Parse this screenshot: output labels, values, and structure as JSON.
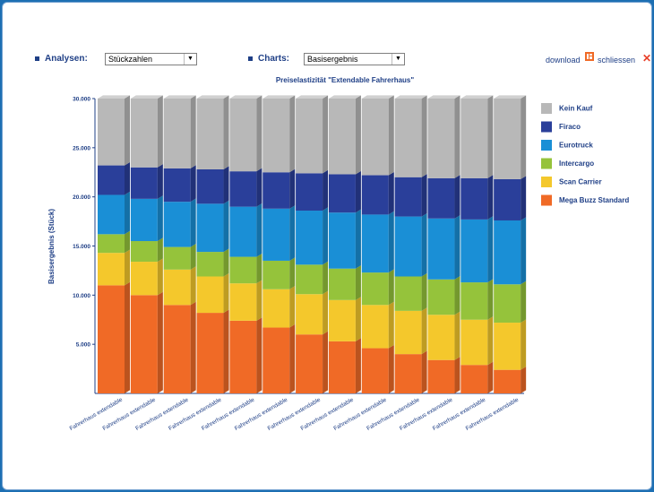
{
  "toolbar": {
    "analysen_label": "Analysen:",
    "analysen_value": "Stückzahlen",
    "charts_label": "Charts:",
    "charts_value": "Basisergebnis",
    "download_label": "download",
    "close_label": "schliessen"
  },
  "colors": {
    "Kein Kauf": "#b8b8b8",
    "Firaco": "#2a3f9a",
    "Eurotruck": "#1a8fd6",
    "Intercargo": "#95c33b",
    "Scan Carrier": "#f4c82c",
    "Mega Buzz Standard": "#f06a26"
  },
  "chart_data": {
    "type": "bar",
    "stacked": true,
    "title": "Preiselastizität \"Extendable Fahrerhaus\"",
    "xlabel": "",
    "ylabel": "Basisergebnis (Stück)",
    "ylim": [
      0,
      30000
    ],
    "yticks": [
      "5.000",
      "10.000",
      "15.000",
      "20.000",
      "25.000",
      "30.000"
    ],
    "legend_position": "right",
    "categories": [
      "Fahrerhaus extendable",
      "Fahrerhaus extendable",
      "Fahrerhaus extendable",
      "Fahrerhaus extendable",
      "Fahrerhaus extendable",
      "Fahrerhaus extendable",
      "Fahrerhaus extendable",
      "Fahrerhaus extendable",
      "Fahrerhaus extendable",
      "Fahrerhaus extendable",
      "Fahrerhaus extendable",
      "Fahrerhaus extendable",
      "Fahrerhaus extendable"
    ],
    "series": [
      {
        "name": "Mega Buzz Standard",
        "values": [
          11000,
          10000,
          9000,
          8200,
          7400,
          6700,
          6000,
          5300,
          4600,
          4000,
          3400,
          2900,
          2400
        ]
      },
      {
        "name": "Scan Carrier",
        "values": [
          3300,
          3400,
          3600,
          3700,
          3800,
          3900,
          4100,
          4200,
          4400,
          4400,
          4600,
          4600,
          4800
        ]
      },
      {
        "name": "Intercargo",
        "values": [
          1900,
          2100,
          2300,
          2500,
          2700,
          2900,
          3000,
          3200,
          3300,
          3500,
          3600,
          3800,
          3900
        ]
      },
      {
        "name": "Eurotruck",
        "values": [
          4000,
          4300,
          4600,
          4900,
          5100,
          5300,
          5500,
          5700,
          5900,
          6100,
          6200,
          6400,
          6500
        ]
      },
      {
        "name": "Firaco",
        "values": [
          3000,
          3200,
          3400,
          3500,
          3600,
          3700,
          3800,
          3900,
          4000,
          4000,
          4100,
          4200,
          4200
        ]
      },
      {
        "name": "Kein Kauf",
        "values": [
          6800,
          7000,
          7100,
          7200,
          7400,
          7500,
          7600,
          7700,
          7800,
          8000,
          8100,
          8100,
          8200
        ]
      }
    ]
  }
}
